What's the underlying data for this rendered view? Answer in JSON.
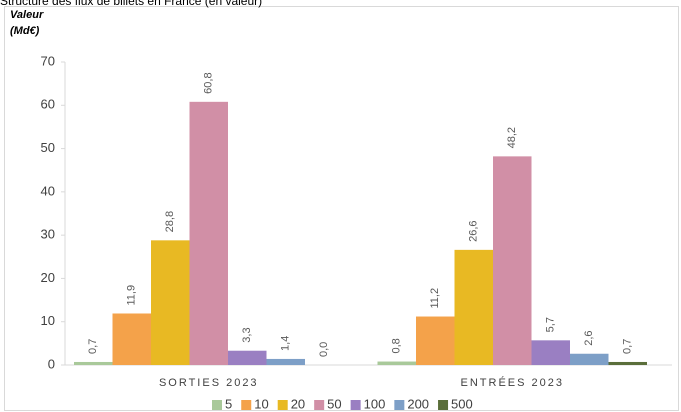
{
  "chart_data": {
    "type": "bar",
    "title": "Structure des flux de billets en France (en valeur)",
    "y_label_lines": [
      "Valeur",
      "(Md€)"
    ],
    "categories": [
      "SORTIES 2023",
      "ENTRÉES 2023"
    ],
    "series": [
      {
        "name": "5",
        "color": "#a9c99a",
        "values": [
          0.7,
          0.8
        ],
        "value_labels": [
          "0,7",
          "0,8"
        ]
      },
      {
        "name": "10",
        "color": "#f4a24a",
        "values": [
          11.9,
          11.2
        ],
        "value_labels": [
          "11,9",
          "11,2"
        ]
      },
      {
        "name": "20",
        "color": "#e8b923",
        "values": [
          28.8,
          26.6
        ],
        "value_labels": [
          "28,8",
          "26,6"
        ]
      },
      {
        "name": "50",
        "color": "#d18fa6",
        "values": [
          60.8,
          48.2
        ],
        "value_labels": [
          "60,8",
          "48,2"
        ]
      },
      {
        "name": "100",
        "color": "#9a7fc2",
        "values": [
          3.3,
          5.7
        ],
        "value_labels": [
          "3,3",
          "5,7"
        ]
      },
      {
        "name": "200",
        "color": "#7d9fc7",
        "values": [
          1.4,
          2.6
        ],
        "value_labels": [
          "1,4",
          "2,6"
        ]
      },
      {
        "name": "500",
        "color": "#5a6e3a",
        "values": [
          0.0,
          0.7
        ],
        "value_labels": [
          "0,0",
          "0,7"
        ]
      }
    ],
    "ylim": [
      0,
      70
    ],
    "yticks": [
      0,
      10,
      20,
      30,
      40,
      50,
      60,
      70
    ],
    "grid": false,
    "legend": "bottom"
  }
}
